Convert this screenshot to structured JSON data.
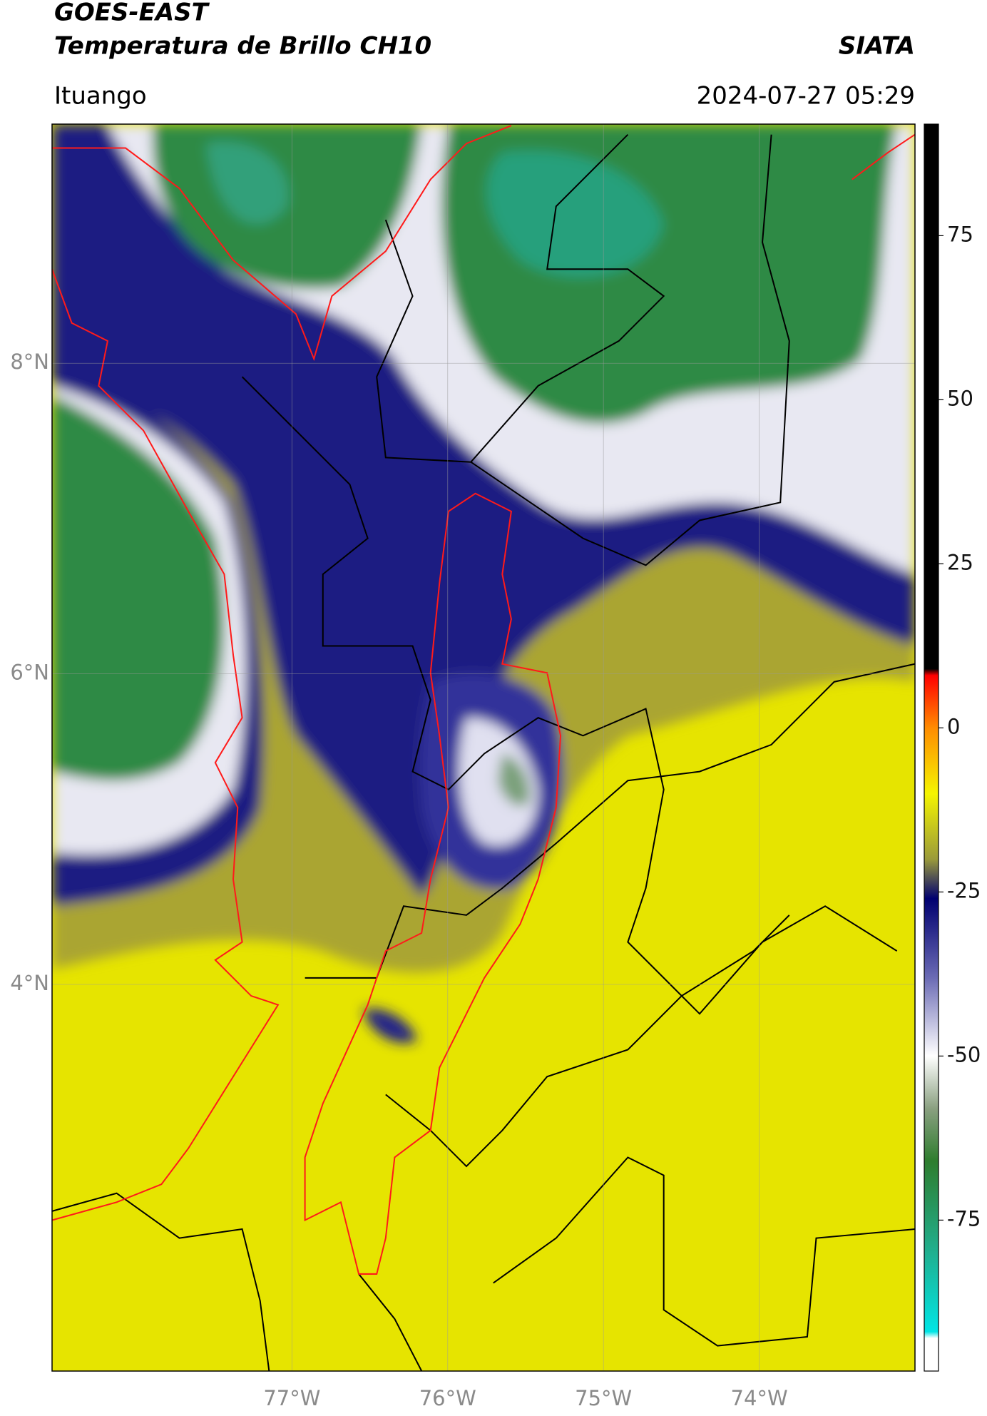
{
  "header": {
    "title": "GOES-EAST",
    "subtitle": "Temperatura de Brillo CH10",
    "brand": "SIATA",
    "location": "Ituango",
    "timestamp": "2024-07-27 05:29"
  },
  "map": {
    "xlim": [
      -78.54,
      -73.0
    ],
    "ylim": [
      1.51,
      9.54
    ],
    "grid": true,
    "xticks": [
      {
        "value": -77,
        "label": "77°W"
      },
      {
        "value": -76,
        "label": "76°W"
      },
      {
        "value": -75,
        "label": "75°W"
      },
      {
        "value": -74,
        "label": "74°W"
      }
    ],
    "yticks": [
      {
        "value": 8,
        "label": "8°N"
      },
      {
        "value": 6,
        "label": "6°N"
      },
      {
        "value": 4,
        "label": "4°N"
      }
    ]
  },
  "colorbar": {
    "lim": [
      -98,
      92
    ],
    "ticks": [
      75,
      50,
      25,
      0,
      -25,
      -50,
      -75
    ],
    "colormap": [
      {
        "value": 92,
        "color": "#000000"
      },
      {
        "value": 9,
        "color": "#000000"
      },
      {
        "value": 8,
        "color": "#ff0000"
      },
      {
        "value": 0,
        "color": "#ff8c00"
      },
      {
        "value": -10,
        "color": "#f5f500"
      },
      {
        "value": -20,
        "color": "#9a9a3a"
      },
      {
        "value": -26,
        "color": "#000070"
      },
      {
        "value": -38,
        "color": "#6a6ab4"
      },
      {
        "value": -50,
        "color": "#ffffff"
      },
      {
        "value": -58,
        "color": "#8aa080"
      },
      {
        "value": -66,
        "color": "#2e7d2e"
      },
      {
        "value": -80,
        "color": "#20b090"
      },
      {
        "value": -92,
        "color": "#00e5e5"
      },
      {
        "value": -93,
        "color": "#ffffff"
      },
      {
        "value": -98,
        "color": "#ffffff"
      }
    ]
  }
}
